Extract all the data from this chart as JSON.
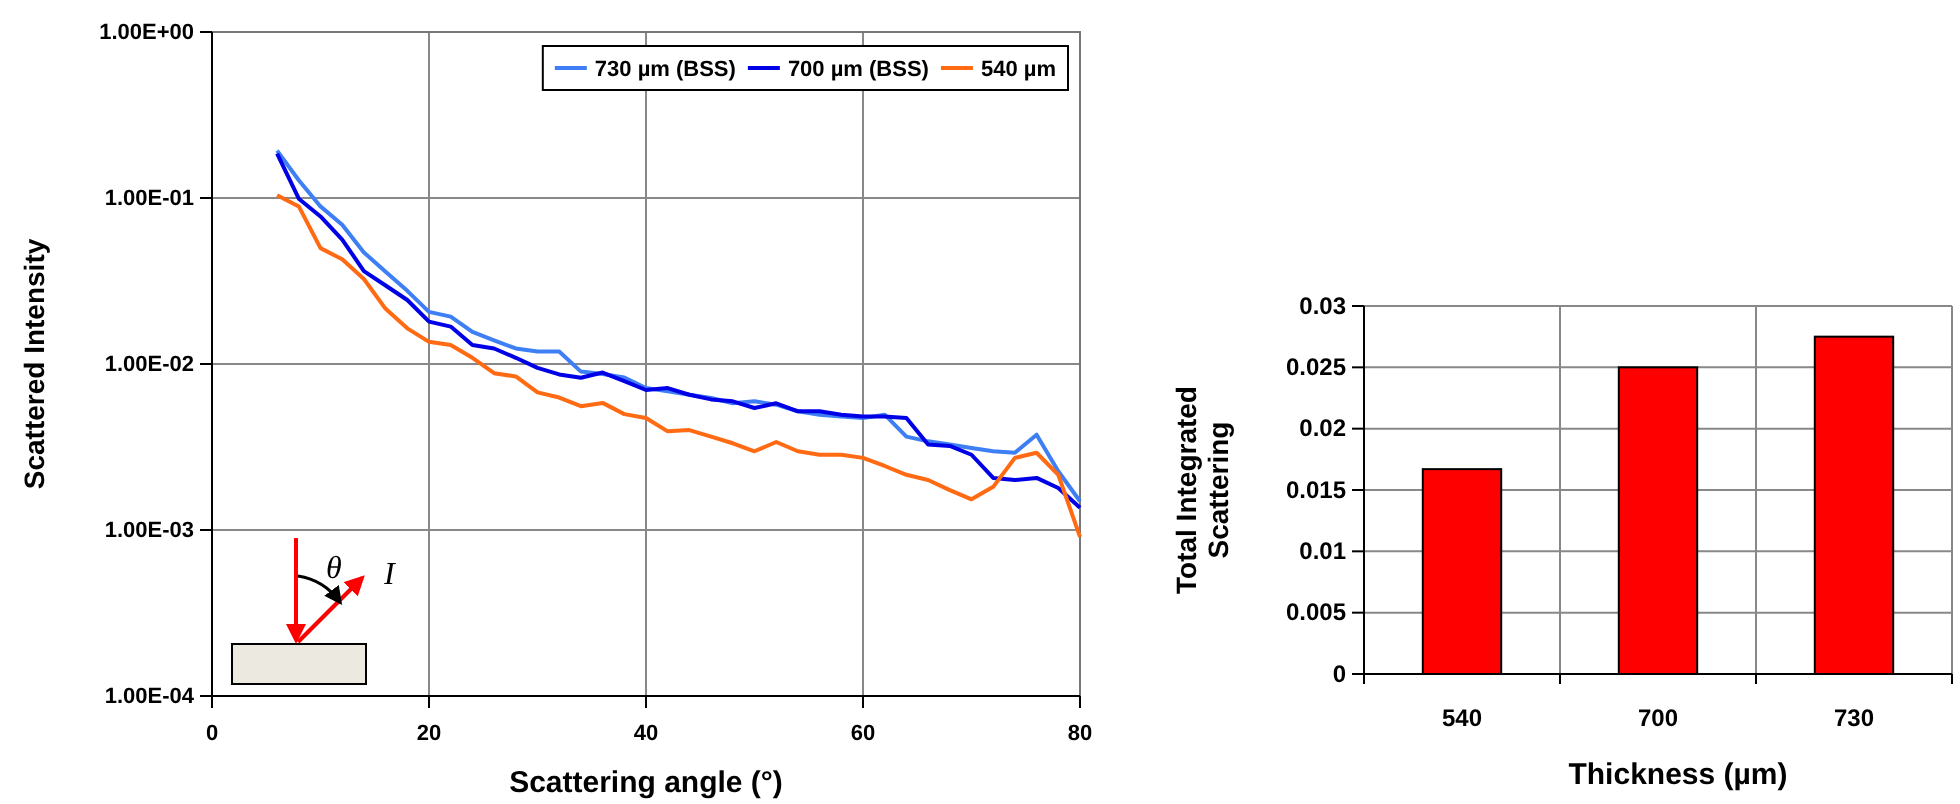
{
  "chart_data": [
    {
      "type": "line",
      "xlabel": "Scattering angle (°)",
      "ylabel": "Scattered Intensity",
      "log": "y",
      "grid": true,
      "legend": "top right",
      "line_style": "solid",
      "marker": "none",
      "x": [
        6,
        8,
        10,
        12,
        14,
        16,
        18,
        20,
        22,
        24,
        26,
        28,
        30,
        32,
        34,
        36,
        38,
        40,
        42,
        44,
        46,
        48,
        50,
        52,
        54,
        56,
        58,
        60,
        62,
        64,
        66,
        68,
        70,
        72,
        74,
        76,
        78,
        80
      ],
      "xlim": [
        0,
        80
      ],
      "xticks": [
        0,
        20,
        40,
        60,
        80
      ],
      "ylim": [
        0.0001,
        1
      ],
      "yticks": [
        {
          "value": 0.0001,
          "label": "1.00E-04"
        },
        {
          "value": 0.001,
          "label": "1.00E-03"
        },
        {
          "value": 0.01,
          "label": "1.00E-02"
        },
        {
          "value": 0.1,
          "label": "1.00E-01"
        },
        {
          "value": 1,
          "label": "1.00E+00"
        }
      ],
      "annotations": [
        "θ",
        "I"
      ],
      "series": [
        {
          "name": "730 µm (BSS)",
          "color": "#3f7ff5",
          "values": [
            0.193,
            0.128,
            0.089,
            0.069,
            0.047,
            0.036,
            0.0276,
            0.0206,
            0.0193,
            0.0156,
            0.0139,
            0.0124,
            0.0119,
            0.0119,
            0.009,
            0.0087,
            0.0083,
            0.00716,
            0.00684,
            0.00653,
            0.00624,
            0.0058,
            0.00596,
            0.00569,
            0.00519,
            0.00495,
            0.00482,
            0.00473,
            0.00495,
            0.00365,
            0.00342,
            0.00327,
            0.00312,
            0.00298,
            0.00292,
            0.00375,
            0.00226,
            0.00149
          ]
        },
        {
          "name": "700 µm (BSS)",
          "color": "#0000e6",
          "values": [
            0.185,
            0.099,
            0.0774,
            0.0562,
            0.0363,
            0.0297,
            0.0243,
            0.018,
            0.0168,
            0.013,
            0.0124,
            0.0109,
            0.00947,
            0.00865,
            0.00826,
            0.00888,
            0.00789,
            0.00697,
            0.00716,
            0.00653,
            0.00612,
            0.00596,
            0.00543,
            0.0058,
            0.00519,
            0.00519,
            0.00495,
            0.00482,
            0.00482,
            0.00473,
            0.00327,
            0.00321,
            0.00284,
            0.00206,
            0.002,
            0.00206,
            0.00179,
            0.00136
          ]
        },
        {
          "name": "540 µm",
          "color": "#ff6a13",
          "values": [
            0.104,
            0.089,
            0.0499,
            0.0427,
            0.0325,
            0.0215,
            0.0164,
            0.0136,
            0.013,
            0.0109,
            0.0088,
            0.00841,
            0.00675,
            0.00628,
            0.00557,
            0.00583,
            0.00499,
            0.00473,
            0.00393,
            0.004,
            0.00365,
            0.00333,
            0.00298,
            0.00339,
            0.00298,
            0.00284,
            0.00284,
            0.00272,
            0.00243,
            0.00215,
            0.002,
            0.00174,
            0.00153,
            0.00182,
            0.00272,
            0.00292,
            0.00215,
            0.00091
          ]
        }
      ]
    },
    {
      "type": "bar",
      "xlabel": "Thickness (µm)",
      "ylabel": "Total Integrated Scattering",
      "grid": true,
      "categories": [
        "540",
        "700",
        "730"
      ],
      "values": [
        0.0167,
        0.025,
        0.0275
      ],
      "color": "#ff0000",
      "ylim": [
        0,
        0.03
      ],
      "yticks": [
        0,
        0.005,
        0.01,
        0.015,
        0.02,
        0.025,
        0.03
      ]
    }
  ]
}
